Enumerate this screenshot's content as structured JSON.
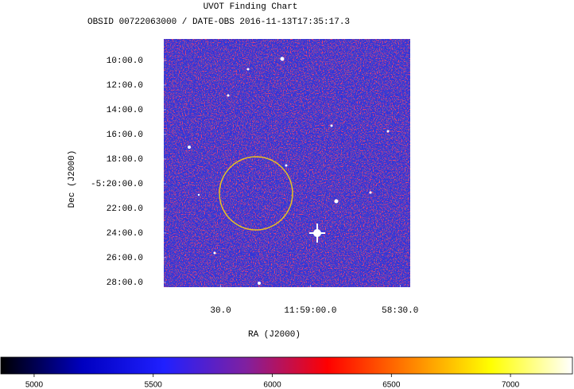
{
  "chart_data": {
    "type": "image",
    "title": "UVOT Finding Chart",
    "subtitle": "OBSID 00722063000 / DATE-OBS 2016-11-13T17:35:17.3",
    "xlabel": "RA (J2000)",
    "ylabel": "Dec (J2000)",
    "xlim": [
      179.9543,
      179.6109
    ],
    "xticks": [
      {
        "value": 179.875,
        "label": "30.0"
      },
      {
        "value": 179.75,
        "label": "11:59:00.0"
      },
      {
        "value": 179.625,
        "label": "58:30.0"
      }
    ],
    "ylim": [
      -5.4732,
      -5.1377
    ],
    "yticks": [
      {
        "value": -5.16667,
        "label": "10:00.0"
      },
      {
        "value": -5.2,
        "label": "12:00.0"
      },
      {
        "value": -5.23333,
        "label": "14:00.0"
      },
      {
        "value": -5.26667,
        "label": "16:00.0"
      },
      {
        "value": -5.3,
        "label": "18:00.0"
      },
      {
        "value": -5.33333,
        "label": "-5:20:00.0"
      },
      {
        "value": -5.36667,
        "label": "22:00.0"
      },
      {
        "value": -5.4,
        "label": "24:00.0"
      },
      {
        "value": -5.43333,
        "label": "26:00.0"
      },
      {
        "value": -5.46667,
        "label": "28:00.0"
      }
    ],
    "colorbar": {
      "clim": [
        4860,
        7260
      ],
      "ticks": [
        5000,
        5500,
        6000,
        6500,
        7000
      ],
      "colormap": [
        "#000000",
        "#0000c0",
        "#2020ff",
        "#8020a0",
        "#ff0000",
        "#ff8000",
        "#ffff00",
        "#ffffff"
      ]
    }
  }
}
